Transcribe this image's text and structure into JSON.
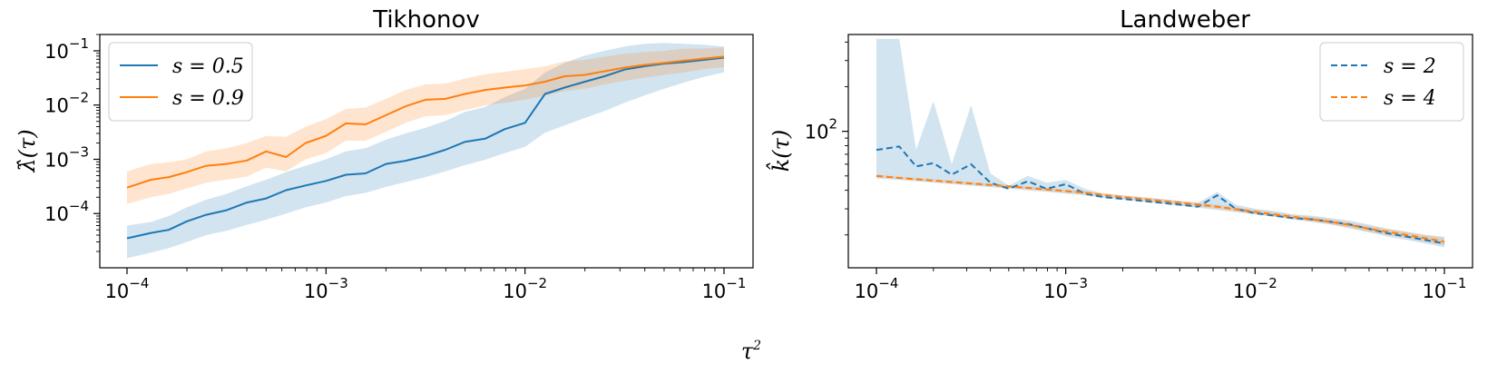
{
  "figure": {
    "shared_xlabel_base": "τ",
    "shared_xlabel_sup": "2"
  },
  "chart_data": [
    {
      "type": "line",
      "title": "Tikhonov",
      "ylabel": "λ̂(τ)",
      "xscale": "log",
      "yscale": "log",
      "xlim": [
        0.0001,
        0.1
      ],
      "ylim": [
        1e-05,
        0.2
      ],
      "x_ticks": [
        {
          "value": 0.0001,
          "base": "10",
          "exp": "−4"
        },
        {
          "value": 0.001,
          "base": "10",
          "exp": "−3"
        },
        {
          "value": 0.01,
          "base": "10",
          "exp": "−2"
        },
        {
          "value": 0.1,
          "base": "10",
          "exp": "−1"
        }
      ],
      "y_ticks": [
        {
          "value": 0.0001,
          "base": "10",
          "exp": "−4"
        },
        {
          "value": 0.001,
          "base": "10",
          "exp": "−3"
        },
        {
          "value": 0.01,
          "base": "10",
          "exp": "−2"
        },
        {
          "value": 0.1,
          "base": "10",
          "exp": "−1"
        }
      ],
      "legend": {
        "position": "upper-left",
        "entries": [
          "s = 0.5",
          "s = 0.9"
        ]
      },
      "x": [
        0.0001,
        0.000132,
        0.000162,
        0.0002,
        0.00025,
        0.000316,
        0.0004,
        0.0005,
        0.00063,
        0.00079,
        0.001,
        0.00126,
        0.00158,
        0.002,
        0.00251,
        0.00316,
        0.00398,
        0.005,
        0.0063,
        0.0079,
        0.01,
        0.0126,
        0.0158,
        0.02,
        0.0251,
        0.0316,
        0.0398,
        0.05,
        0.063,
        0.079,
        0.1
      ],
      "series": [
        {
          "name": "s = 0.5",
          "color": "#1f77b4",
          "dash": "solid",
          "values": [
            3.5e-05,
            4.4e-05,
            5e-05,
            7.2e-05,
            9.5e-05,
            0.000115,
            0.00016,
            0.00019,
            0.00027,
            0.00033,
            0.0004,
            0.00052,
            0.00055,
            0.00082,
            0.00094,
            0.00115,
            0.0015,
            0.0021,
            0.0024,
            0.0036,
            0.0047,
            0.016,
            0.021,
            0.027,
            0.034,
            0.045,
            0.052,
            0.058,
            0.062,
            0.068,
            0.075
          ],
          "upper": [
            6e-05,
            7e-05,
            9e-05,
            0.00013,
            0.00018,
            0.00023,
            0.00032,
            0.00042,
            0.00058,
            0.00076,
            0.001,
            0.0014,
            0.0016,
            0.0023,
            0.003,
            0.0038,
            0.0051,
            0.0075,
            0.0092,
            0.014,
            0.02,
            0.04,
            0.06,
            0.082,
            0.1,
            0.12,
            0.135,
            0.14,
            0.135,
            0.13,
            0.12
          ],
          "lower": [
            1.5e-05,
            1.9e-05,
            2.3e-05,
            3e-05,
            4e-05,
            4.8e-05,
            6.2e-05,
            7.7e-05,
            0.0001,
            0.00013,
            0.00016,
            0.00021,
            0.00024,
            0.00031,
            0.00038,
            0.00047,
            0.0006,
            0.00078,
            0.00098,
            0.0013,
            0.0017,
            0.0031,
            0.0042,
            0.0058,
            0.0078,
            0.011,
            0.015,
            0.02,
            0.026,
            0.033,
            0.04
          ]
        },
        {
          "name": "s = 0.9",
          "color": "#ff7f0e",
          "dash": "solid",
          "values": [
            0.0003,
            0.00042,
            0.00047,
            0.00058,
            0.00076,
            0.00082,
            0.00095,
            0.0014,
            0.0011,
            0.002,
            0.0027,
            0.0046,
            0.0044,
            0.0065,
            0.0095,
            0.0125,
            0.013,
            0.016,
            0.019,
            0.021,
            0.023,
            0.027,
            0.034,
            0.036,
            0.042,
            0.049,
            0.055,
            0.06,
            0.066,
            0.072,
            0.078
          ],
          "upper": [
            0.0006,
            0.00082,
            0.00088,
            0.001,
            0.0014,
            0.0016,
            0.002,
            0.0027,
            0.0026,
            0.004,
            0.0055,
            0.0085,
            0.009,
            0.013,
            0.019,
            0.024,
            0.025,
            0.031,
            0.037,
            0.041,
            0.046,
            0.052,
            0.064,
            0.068,
            0.078,
            0.088,
            0.095,
            0.1,
            0.11,
            0.11,
            0.115
          ],
          "lower": [
            0.00015,
            0.0002,
            0.00023,
            0.00029,
            0.00037,
            0.00042,
            0.00048,
            0.0007,
            0.0006,
            0.001,
            0.0013,
            0.0022,
            0.0022,
            0.0032,
            0.0047,
            0.0062,
            0.0065,
            0.0081,
            0.0098,
            0.011,
            0.0125,
            0.015,
            0.018,
            0.02,
            0.024,
            0.028,
            0.032,
            0.036,
            0.04,
            0.046,
            0.05
          ]
        }
      ]
    },
    {
      "type": "line",
      "title": "Landweber",
      "ylabel": "k̂(τ)",
      "xscale": "log",
      "yscale": "log",
      "xlim": [
        0.0001,
        0.1
      ],
      "ylim": [
        12,
        450
      ],
      "x_ticks": [
        {
          "value": 0.0001,
          "base": "10",
          "exp": "−4"
        },
        {
          "value": 0.001,
          "base": "10",
          "exp": "−3"
        },
        {
          "value": 0.01,
          "base": "10",
          "exp": "−2"
        },
        {
          "value": 0.1,
          "base": "10",
          "exp": "−1"
        }
      ],
      "y_ticks": [
        {
          "value": 100,
          "base": "10",
          "exp": "2"
        }
      ],
      "legend": {
        "position": "upper-right",
        "entries": [
          "s = 2",
          "s = 4"
        ]
      },
      "x": [
        0.0001,
        0.000132,
        0.000162,
        0.0002,
        0.00025,
        0.000316,
        0.0004,
        0.0005,
        0.00063,
        0.00079,
        0.001,
        0.00126,
        0.00158,
        0.002,
        0.00251,
        0.00316,
        0.00398,
        0.005,
        0.0063,
        0.0079,
        0.01,
        0.0126,
        0.0158,
        0.02,
        0.0251,
        0.0316,
        0.0398,
        0.05,
        0.063,
        0.079,
        0.1
      ],
      "series": [
        {
          "name": "s = 2",
          "color": "#1f77b4",
          "dash": "dashed",
          "values": [
            75,
            79,
            58,
            61,
            51,
            60,
            45,
            41,
            46,
            41,
            44,
            38,
            36,
            35,
            34,
            33,
            32,
            31,
            37,
            30,
            28,
            27,
            26,
            25.5,
            24.5,
            23.5,
            22,
            20.5,
            19.5,
            18.5,
            17.5
          ],
          "upper": [
            420,
            420,
            75,
            160,
            60,
            150,
            52,
            43,
            50,
            45,
            47,
            41,
            38,
            37,
            36,
            35,
            34,
            33,
            39,
            32,
            30,
            29,
            27.5,
            27,
            26,
            25,
            23.5,
            22,
            21,
            20,
            19.5
          ],
          "lower": [
            48,
            47,
            46,
            45,
            44,
            43,
            42,
            41,
            40,
            39,
            38,
            37,
            35.5,
            34.5,
            33.5,
            32.5,
            31.5,
            30.5,
            29.5,
            28.5,
            27.5,
            26.5,
            25.5,
            24.5,
            23.5,
            22.2,
            20.8,
            19.5,
            18.5,
            17.5,
            16.5
          ]
        },
        {
          "name": "s = 4",
          "color": "#ff7f0e",
          "dash": "dashed",
          "values": [
            50,
            48.5,
            47.5,
            46.5,
            45.5,
            44.5,
            43.5,
            42.5,
            41.5,
            40.5,
            39.5,
            38.5,
            37.2,
            36,
            35,
            34,
            33,
            32,
            31,
            29.8,
            28.6,
            27.5,
            26.5,
            25.5,
            24.5,
            23.3,
            22,
            21,
            20,
            19,
            18
          ],
          "upper": [
            51,
            49.5,
            48.5,
            47.5,
            46.5,
            45.5,
            44.5,
            43.5,
            42.5,
            41.5,
            40.5,
            39.5,
            38.2,
            37,
            36,
            35,
            34,
            33,
            32,
            30.8,
            29.6,
            28.5,
            27.5,
            26.5,
            25.5,
            24.3,
            23,
            22,
            21,
            20,
            19
          ],
          "lower": [
            49,
            47.5,
            46.5,
            45.5,
            44.5,
            43.5,
            42.5,
            41.5,
            40.5,
            39.5,
            38.5,
            37.5,
            36.2,
            35,
            34,
            33,
            32,
            31,
            30,
            28.8,
            27.6,
            26.5,
            25.5,
            24.5,
            23.5,
            22.3,
            21,
            20,
            19,
            18,
            17
          ]
        }
      ]
    }
  ]
}
